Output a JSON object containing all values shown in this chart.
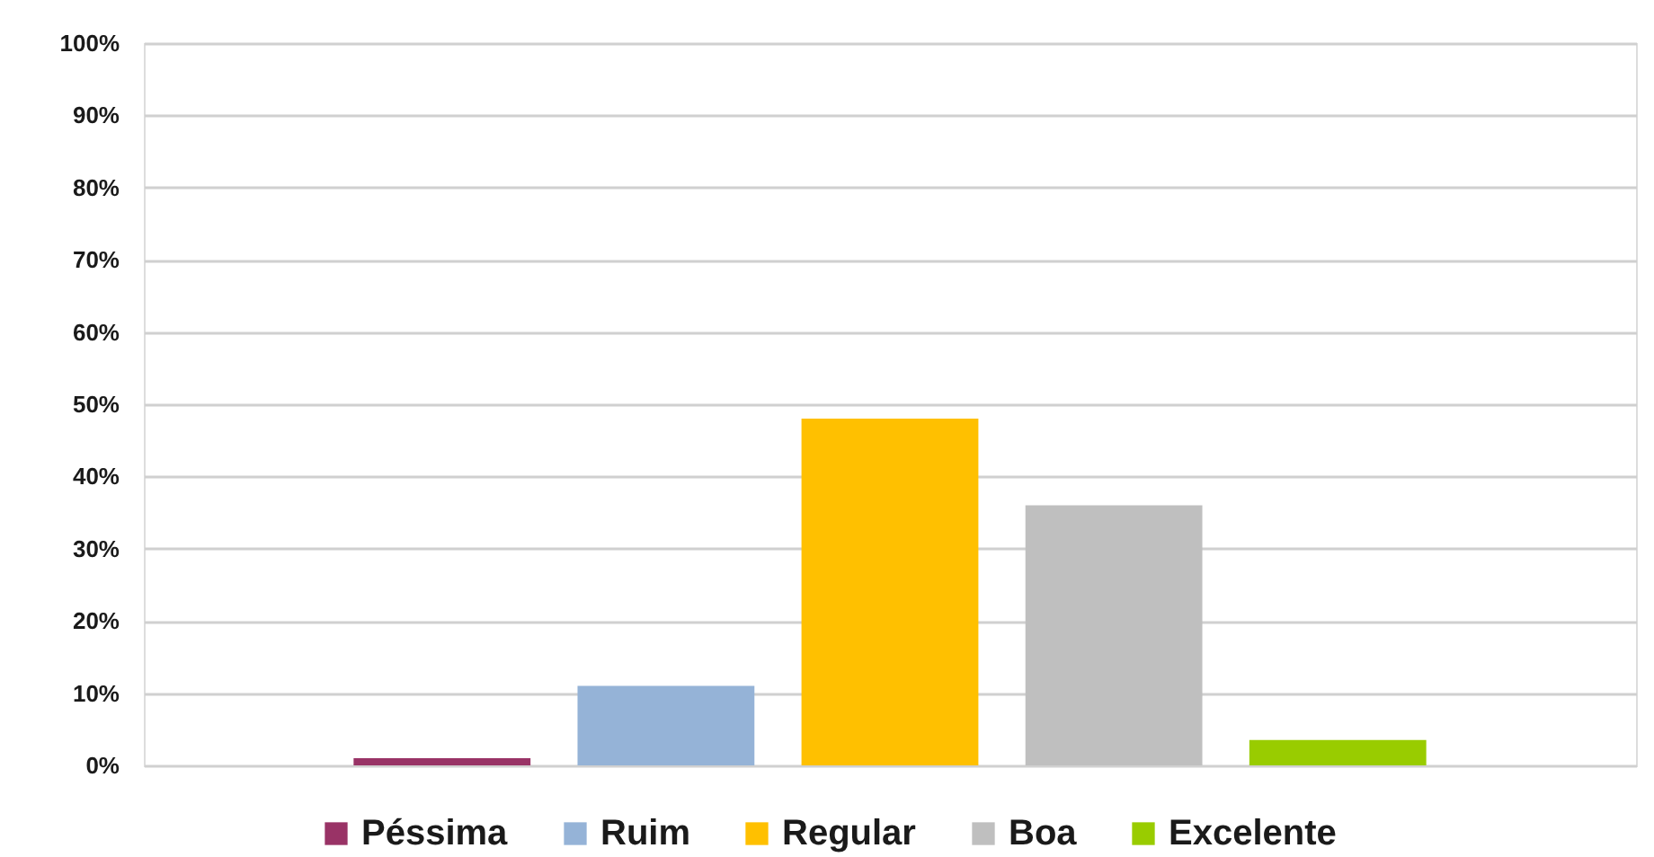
{
  "chart_data": {
    "type": "bar",
    "categories": [
      null
    ],
    "series": [
      {
        "name": "Péssima",
        "color": "#993366",
        "values": [
          1
        ]
      },
      {
        "name": "Ruim",
        "color": "#95b3d7",
        "values": [
          11
        ]
      },
      {
        "name": "Regular",
        "color": "#ffc000",
        "values": [
          48
        ]
      },
      {
        "name": "Boa",
        "color": "#bfbfbf",
        "values": [
          36
        ]
      },
      {
        "name": "Excelente",
        "color": "#99cc00",
        "values": [
          3.5
        ]
      }
    ],
    "ylim": [
      0,
      100
    ],
    "yticks": [
      {
        "value": 0,
        "label": "0%"
      },
      {
        "value": 10,
        "label": "10%"
      },
      {
        "value": 20,
        "label": "20%"
      },
      {
        "value": 30,
        "label": "30%"
      },
      {
        "value": 40,
        "label": "40%"
      },
      {
        "value": 50,
        "label": "50%"
      },
      {
        "value": 60,
        "label": "60%"
      },
      {
        "value": 70,
        "label": "70%"
      },
      {
        "value": 80,
        "label": "80%"
      },
      {
        "value": 90,
        "label": "90%"
      },
      {
        "value": 100,
        "label": "100%"
      }
    ],
    "grid": "y",
    "legend": "bottom"
  }
}
